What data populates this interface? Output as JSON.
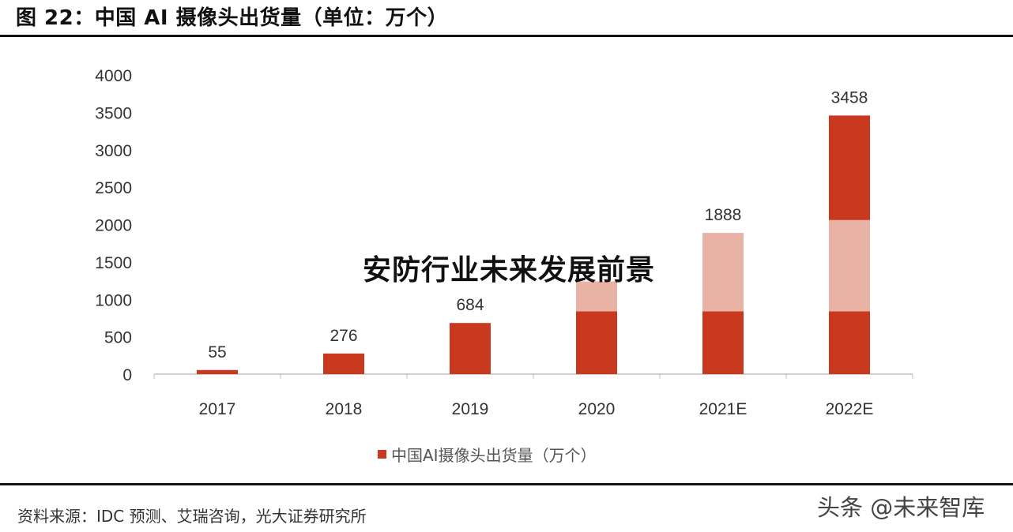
{
  "figure": {
    "title": "图 22：中国 AI 摄像头出货量（单位：万个）",
    "source": "资料来源：IDC 预测、艾瑞咨询，光大证券研究所",
    "watermark": "头条 @未来智库",
    "overlay_text": "安防行业未来发展前景"
  },
  "colors": {
    "bar": "#c9391f",
    "bar_light": "#e8b2a4",
    "axis": "#bfbfbf",
    "tick_text": "#333333"
  },
  "chart_data": {
    "type": "bar",
    "categories": [
      "2017",
      "2018",
      "2019",
      "2020",
      "2021E",
      "2022E"
    ],
    "values": [
      55,
      276,
      684,
      1240,
      1888,
      3458
    ],
    "data_labels": [
      "55",
      "276",
      "684",
      "",
      "1888",
      "3458"
    ],
    "segments": [
      [
        {
          "value": 55,
          "shade": "dark"
        }
      ],
      [
        {
          "value": 276,
          "shade": "dark"
        }
      ],
      [
        {
          "value": 684,
          "shade": "dark"
        }
      ],
      [
        {
          "value": 840,
          "shade": "dark"
        },
        {
          "value": 400,
          "shade": "light"
        }
      ],
      [
        {
          "value": 840,
          "shade": "dark"
        },
        {
          "value": 1048,
          "shade": "light"
        }
      ],
      [
        {
          "value": 840,
          "shade": "dark"
        },
        {
          "value": 1220,
          "shade": "light"
        },
        {
          "value": 1398,
          "shade": "dark"
        }
      ]
    ],
    "ylim": [
      0,
      4000
    ],
    "yticks": [
      0,
      500,
      1000,
      1500,
      2000,
      2500,
      3000,
      3500,
      4000
    ],
    "legend": [
      "中国AI摄像头出货量（万个）"
    ],
    "legend_position": "bottom",
    "grid": false
  }
}
